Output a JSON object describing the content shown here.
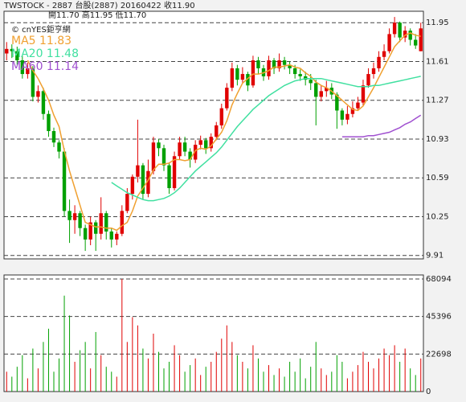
{
  "chart_data": [
    {
      "type": "candlestick",
      "header_line1": "TWSTOCK - 2887  台股(2887) 20160422   收11.90",
      "header_line2": "開11.70   高11.95   低11.70",
      "source": "© cnYES鉅亨網",
      "up_color": "#e00000",
      "down_color": "#00a000",
      "ylim": [
        9.88,
        12.05
      ],
      "yticks": [
        9.91,
        10.25,
        10.59,
        10.93,
        11.27,
        11.61,
        11.95
      ],
      "grid": true,
      "open": [
        11.68,
        11.72,
        11.7,
        11.62,
        11.5,
        11.55,
        11.3,
        11.35,
        11.15,
        11.0,
        10.9,
        10.82,
        10.3,
        10.22,
        10.28,
        10.15,
        10.05,
        10.2,
        10.1,
        10.28,
        10.12,
        10.05,
        10.1,
        10.3,
        10.45,
        10.6,
        10.7,
        10.45,
        10.65,
        10.9,
        10.85,
        10.7,
        10.5,
        10.78,
        10.9,
        10.82,
        10.75,
        10.88,
        10.92,
        10.85,
        10.95,
        11.05,
        11.2,
        11.38,
        11.55,
        11.45,
        11.5,
        11.4,
        11.62,
        11.55,
        11.48,
        11.62,
        11.55,
        11.62,
        11.58,
        11.55,
        11.5,
        11.48,
        11.45,
        11.42,
        11.3,
        11.35,
        11.38,
        11.32,
        11.18,
        11.1,
        11.15,
        11.2,
        11.25,
        11.4,
        11.5,
        11.55,
        11.65,
        11.7,
        11.85,
        11.95,
        11.82,
        11.88,
        11.8,
        11.7
      ],
      "high": [
        11.78,
        11.76,
        11.74,
        11.66,
        11.6,
        11.57,
        11.4,
        11.38,
        11.18,
        11.03,
        10.92,
        10.85,
        10.4,
        10.35,
        10.3,
        10.18,
        10.25,
        10.22,
        10.42,
        10.3,
        10.15,
        10.12,
        10.35,
        10.5,
        10.62,
        11.1,
        10.72,
        10.75,
        10.95,
        10.93,
        10.88,
        10.72,
        10.82,
        10.95,
        10.95,
        10.85,
        10.92,
        10.96,
        10.94,
        10.98,
        11.08,
        11.24,
        11.42,
        11.6,
        11.58,
        11.56,
        11.52,
        11.66,
        11.65,
        11.58,
        11.66,
        11.64,
        11.68,
        11.65,
        11.61,
        11.58,
        11.54,
        11.52,
        11.5,
        11.45,
        11.4,
        11.44,
        11.42,
        11.34,
        11.2,
        11.22,
        11.26,
        11.3,
        11.45,
        11.55,
        11.6,
        11.7,
        11.76,
        11.9,
        12.0,
        11.96,
        11.92,
        11.9,
        11.85,
        11.95
      ],
      "low": [
        11.62,
        11.64,
        11.58,
        11.46,
        11.46,
        11.26,
        11.25,
        11.1,
        10.95,
        10.86,
        10.76,
        10.25,
        10.02,
        10.1,
        10.08,
        9.95,
        10.0,
        9.95,
        10.05,
        10.05,
        9.98,
        10.0,
        10.08,
        10.28,
        10.4,
        10.55,
        10.4,
        10.42,
        10.62,
        10.78,
        10.65,
        10.45,
        10.48,
        10.75,
        10.78,
        10.68,
        10.72,
        10.84,
        10.8,
        10.82,
        10.92,
        11.02,
        11.18,
        11.35,
        11.4,
        11.42,
        11.35,
        11.38,
        11.5,
        11.44,
        11.45,
        11.5,
        11.52,
        11.54,
        11.5,
        11.46,
        11.44,
        11.4,
        11.36,
        11.05,
        11.26,
        11.3,
        11.28,
        11.02,
        11.05,
        11.06,
        11.12,
        11.18,
        11.22,
        11.38,
        11.46,
        11.52,
        11.62,
        11.68,
        11.82,
        11.78,
        11.78,
        11.75,
        11.72,
        11.7
      ],
      "close": [
        11.72,
        11.7,
        11.62,
        11.5,
        11.55,
        11.3,
        11.35,
        11.15,
        11.0,
        10.9,
        10.82,
        10.3,
        10.22,
        10.28,
        10.15,
        10.05,
        10.2,
        10.1,
        10.28,
        10.12,
        10.05,
        10.1,
        10.3,
        10.45,
        10.6,
        10.7,
        10.45,
        10.65,
        10.9,
        10.85,
        10.7,
        10.5,
        10.78,
        10.9,
        10.82,
        10.75,
        10.88,
        10.92,
        10.85,
        10.95,
        11.05,
        11.2,
        11.38,
        11.55,
        11.45,
        11.5,
        11.4,
        11.62,
        11.55,
        11.48,
        11.62,
        11.55,
        11.62,
        11.58,
        11.55,
        11.5,
        11.48,
        11.45,
        11.42,
        11.3,
        11.35,
        11.38,
        11.32,
        11.18,
        11.1,
        11.15,
        11.2,
        11.25,
        11.4,
        11.5,
        11.55,
        11.65,
        11.7,
        11.85,
        11.95,
        11.82,
        11.88,
        11.8,
        11.75,
        11.9
      ],
      "series": [
        {
          "name": "MA5 11.83",
          "color": "#f0a030",
          "values": [
            null,
            null,
            null,
            null,
            11.62,
            11.53,
            11.46,
            11.37,
            11.27,
            11.14,
            11.04,
            10.83,
            10.65,
            10.5,
            10.35,
            10.2,
            10.18,
            10.16,
            10.16,
            10.15,
            10.15,
            10.13,
            10.17,
            10.2,
            10.3,
            10.43,
            10.5,
            10.57,
            10.66,
            10.71,
            10.71,
            10.72,
            10.75,
            10.75,
            10.74,
            10.75,
            10.83,
            10.85,
            10.84,
            10.87,
            10.93,
            10.99,
            11.09,
            11.23,
            11.33,
            11.42,
            11.46,
            11.5,
            11.5,
            11.51,
            11.53,
            11.56,
            11.56,
            11.57,
            11.58,
            11.56,
            11.55,
            11.51,
            11.48,
            11.43,
            11.4,
            11.38,
            11.35,
            11.31,
            11.27,
            11.23,
            11.19,
            11.18,
            11.22,
            11.3,
            11.38,
            11.47,
            11.56,
            11.65,
            11.74,
            11.79,
            11.84,
            11.86,
            11.84,
            11.83
          ]
        },
        {
          "name": "MA20 11.48",
          "color": "#40e0a0",
          "values": [
            null,
            null,
            null,
            null,
            null,
            null,
            null,
            null,
            null,
            null,
            null,
            null,
            null,
            null,
            null,
            null,
            null,
            null,
            null,
            null,
            10.55,
            10.52,
            10.49,
            10.46,
            10.44,
            10.42,
            10.4,
            10.39,
            10.39,
            10.4,
            10.41,
            10.43,
            10.46,
            10.5,
            10.55,
            10.6,
            10.65,
            10.69,
            10.73,
            10.77,
            10.81,
            10.86,
            10.92,
            10.98,
            11.04,
            11.09,
            11.14,
            11.19,
            11.23,
            11.27,
            11.31,
            11.34,
            11.37,
            11.4,
            11.42,
            11.44,
            11.45,
            11.46,
            11.46,
            11.46,
            11.46,
            11.45,
            11.44,
            11.43,
            11.42,
            11.41,
            11.4,
            11.39,
            11.39,
            11.39,
            11.4,
            11.4,
            11.41,
            11.42,
            11.43,
            11.44,
            11.45,
            11.46,
            11.47,
            11.48
          ]
        },
        {
          "name": "MA60 11.14",
          "color": "#a050d0",
          "values": [
            null,
            null,
            null,
            null,
            null,
            null,
            null,
            null,
            null,
            null,
            null,
            null,
            null,
            null,
            null,
            null,
            null,
            null,
            null,
            null,
            null,
            null,
            null,
            null,
            null,
            null,
            null,
            null,
            null,
            null,
            null,
            null,
            null,
            null,
            null,
            null,
            null,
            null,
            null,
            null,
            null,
            null,
            null,
            null,
            null,
            null,
            null,
            null,
            null,
            null,
            null,
            null,
            null,
            null,
            null,
            null,
            null,
            null,
            null,
            null,
            null,
            null,
            null,
            null,
            10.95,
            10.95,
            10.95,
            10.95,
            10.95,
            10.96,
            10.96,
            10.97,
            10.98,
            10.99,
            11.01,
            11.03,
            11.06,
            11.08,
            11.11,
            11.14
          ]
        }
      ]
    },
    {
      "type": "bar",
      "ylim": [
        0,
        70500
      ],
      "yticks": [
        0,
        22698,
        45396,
        68094
      ],
      "grid": true,
      "values": [
        12000,
        9000,
        15000,
        22000,
        8000,
        26000,
        14000,
        30000,
        38000,
        12000,
        20000,
        58000,
        46000,
        18000,
        25000,
        30000,
        14000,
        36000,
        22000,
        15000,
        12000,
        9000,
        68094,
        30000,
        45000,
        40000,
        26000,
        20000,
        35000,
        24000,
        14000,
        18000,
        28000,
        22000,
        12000,
        16000,
        20000,
        10000,
        15000,
        18000,
        24000,
        32000,
        40000,
        30000,
        22000,
        18000,
        14000,
        28000,
        20000,
        12000,
        16000,
        10000,
        14000,
        9000,
        18000,
        12000,
        20000,
        8000,
        15000,
        30000,
        14000,
        10000,
        12000,
        22000,
        18000,
        8000,
        12000,
        16000,
        24000,
        18000,
        14000,
        20000,
        26000,
        22000,
        28000,
        18000,
        26000,
        14000,
        10000,
        20000
      ]
    }
  ]
}
